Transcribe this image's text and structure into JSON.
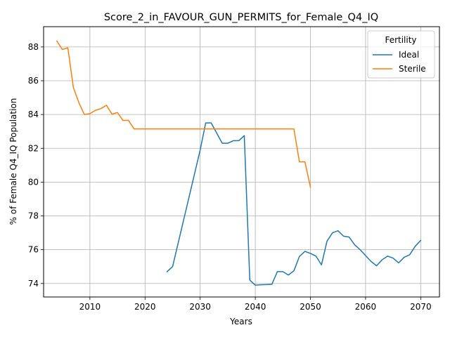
{
  "chart_data": {
    "type": "line",
    "title": "Score_2_in_FAVOUR_GUN_PERMITS_for_Female_Q4_IQ",
    "xlabel": "Years",
    "ylabel": "% of Female Q4_IQ Population",
    "xlim": [
      2001.6,
      2073.4
    ],
    "ylim": [
      73.2,
      89.2
    ],
    "xticks": [
      2010,
      2020,
      2030,
      2040,
      2050,
      2060,
      2070
    ],
    "yticks": [
      74,
      76,
      78,
      80,
      82,
      84,
      86,
      88
    ],
    "grid": true,
    "legend": {
      "title": "Fertility",
      "placement": "upper-right"
    },
    "series": [
      {
        "name": "Ideal",
        "color": "#1f77b4",
        "x": [
          2024,
          2025,
          2030,
          2031,
          2032,
          2033,
          2034,
          2035,
          2036,
          2037,
          2038,
          2039,
          2040,
          2041,
          2042,
          2043,
          2044,
          2045,
          2046,
          2047,
          2048,
          2049,
          2050,
          2051,
          2052,
          2053,
          2054,
          2055,
          2056,
          2057,
          2058,
          2059,
          2060,
          2061,
          2062,
          2063,
          2064,
          2065,
          2066,
          2067,
          2068,
          2069,
          2070
        ],
        "y": [
          74.7,
          75.0,
          81.9,
          83.5,
          83.5,
          82.9,
          82.3,
          82.3,
          82.45,
          82.45,
          82.75,
          74.2,
          73.9,
          73.92,
          73.93,
          73.95,
          74.7,
          74.7,
          74.5,
          74.75,
          75.6,
          75.9,
          75.78,
          75.62,
          75.1,
          76.5,
          77.0,
          77.12,
          76.8,
          76.75,
          76.3,
          76.0,
          75.65,
          75.3,
          75.05,
          75.4,
          75.62,
          75.5,
          75.22,
          75.55,
          75.7,
          76.2,
          76.55
        ]
      },
      {
        "name": "Sterile",
        "color": "#ff7f0e",
        "x": [
          2004,
          2005,
          2006,
          2007,
          2008,
          2009,
          2010,
          2011,
          2012,
          2013,
          2014,
          2015,
          2016,
          2017,
          2018,
          2019,
          2020,
          2025,
          2030,
          2035,
          2040,
          2045,
          2047,
          2048,
          2049,
          2050
        ],
        "y": [
          88.35,
          87.85,
          87.95,
          85.6,
          84.7,
          84.0,
          84.05,
          84.25,
          84.35,
          84.55,
          84.02,
          84.12,
          83.65,
          83.65,
          83.15,
          83.15,
          83.15,
          83.15,
          83.15,
          83.15,
          83.15,
          83.15,
          83.15,
          81.2,
          81.2,
          79.7
        ]
      }
    ]
  }
}
